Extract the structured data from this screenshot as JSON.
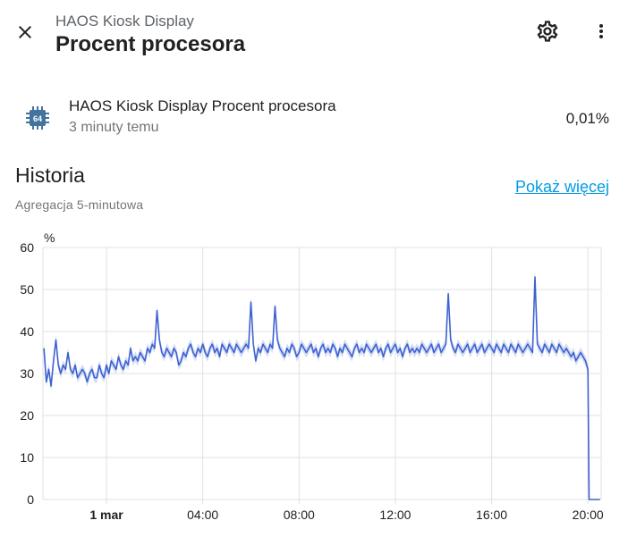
{
  "header": {
    "subtitle": "HAOS Kiosk Display",
    "title": "Procent procesora",
    "close_icon": "close-icon",
    "settings_icon": "gear-icon",
    "more_icon": "more-vertical-icon"
  },
  "entity": {
    "icon": "cpu-64-icon",
    "icon_text": "64",
    "name": "HAOS Kiosk Display Procent procesora",
    "last_changed": "3 minuty temu",
    "value": "0,01%"
  },
  "history": {
    "title": "Historia",
    "aggregation": "Agregacja 5-minutowa",
    "show_more": "Pokaż więcej"
  },
  "colors": {
    "accent": "#039be5",
    "line": "#3d62d1",
    "band": "#c9d5f2",
    "grid": "#e0e0e0"
  },
  "chart_data": {
    "type": "line",
    "unit_label": "%",
    "ylim": [
      0,
      60
    ],
    "yticks": [
      "0",
      "10",
      "20",
      "30",
      "40",
      "50",
      "60"
    ],
    "xticks": [
      {
        "label": "1 mar",
        "hour": 0,
        "bold": true
      },
      {
        "label": "04:00",
        "hour": 4,
        "bold": false
      },
      {
        "label": "08:00",
        "hour": 8,
        "bold": false
      },
      {
        "label": "12:00",
        "hour": 12,
        "bold": false
      },
      {
        "label": "16:00",
        "hour": 16,
        "bold": false
      },
      {
        "label": "20:00",
        "hour": 20,
        "bold": false
      }
    ],
    "xlim_hours": [
      -2.64,
      20.55
    ],
    "series": [
      {
        "points": [
          [
            -2.6,
            36
          ],
          [
            -2.5,
            28
          ],
          [
            -2.4,
            31
          ],
          [
            -2.3,
            27
          ],
          [
            -2.2,
            33
          ],
          [
            -2.1,
            38
          ],
          [
            -2.0,
            32
          ],
          [
            -1.9,
            30
          ],
          [
            -1.8,
            32
          ],
          [
            -1.7,
            31
          ],
          [
            -1.6,
            35
          ],
          [
            -1.5,
            31
          ],
          [
            -1.4,
            30
          ],
          [
            -1.3,
            32
          ],
          [
            -1.2,
            29
          ],
          [
            -1.1,
            30
          ],
          [
            -1.0,
            31
          ],
          [
            -0.9,
            30
          ],
          [
            -0.8,
            28
          ],
          [
            -0.7,
            30
          ],
          [
            -0.6,
            31
          ],
          [
            -0.5,
            29
          ],
          [
            -0.4,
            29
          ],
          [
            -0.3,
            32
          ],
          [
            -0.2,
            30
          ],
          [
            -0.1,
            29
          ],
          [
            0.0,
            32
          ],
          [
            0.1,
            30
          ],
          [
            0.2,
            33
          ],
          [
            0.3,
            32
          ],
          [
            0.4,
            31
          ],
          [
            0.5,
            34
          ],
          [
            0.6,
            32
          ],
          [
            0.7,
            31
          ],
          [
            0.8,
            33
          ],
          [
            0.9,
            32
          ],
          [
            1.0,
            36
          ],
          [
            1.1,
            33
          ],
          [
            1.2,
            34
          ],
          [
            1.3,
            33
          ],
          [
            1.4,
            35
          ],
          [
            1.5,
            34
          ],
          [
            1.6,
            33
          ],
          [
            1.7,
            36
          ],
          [
            1.8,
            35
          ],
          [
            1.9,
            37
          ],
          [
            2.0,
            36
          ],
          [
            2.1,
            45
          ],
          [
            2.2,
            38
          ],
          [
            2.3,
            35
          ],
          [
            2.4,
            34
          ],
          [
            2.5,
            36
          ],
          [
            2.6,
            35
          ],
          [
            2.7,
            34
          ],
          [
            2.8,
            36
          ],
          [
            2.9,
            35
          ],
          [
            3.0,
            32
          ],
          [
            3.1,
            33
          ],
          [
            3.2,
            35
          ],
          [
            3.3,
            34
          ],
          [
            3.4,
            36
          ],
          [
            3.5,
            37
          ],
          [
            3.6,
            35
          ],
          [
            3.7,
            34
          ],
          [
            3.8,
            36
          ],
          [
            3.9,
            35
          ],
          [
            4.0,
            37
          ],
          [
            4.1,
            35
          ],
          [
            4.2,
            34
          ],
          [
            4.3,
            36
          ],
          [
            4.4,
            37
          ],
          [
            4.5,
            35
          ],
          [
            4.6,
            36
          ],
          [
            4.7,
            34
          ],
          [
            4.8,
            37
          ],
          [
            4.9,
            36
          ],
          [
            5.0,
            35
          ],
          [
            5.1,
            37
          ],
          [
            5.2,
            36
          ],
          [
            5.3,
            35
          ],
          [
            5.4,
            37
          ],
          [
            5.5,
            36
          ],
          [
            5.6,
            35
          ],
          [
            5.7,
            36
          ],
          [
            5.8,
            37
          ],
          [
            5.9,
            36
          ],
          [
            6.0,
            47
          ],
          [
            6.1,
            37
          ],
          [
            6.2,
            33
          ],
          [
            6.3,
            36
          ],
          [
            6.4,
            35
          ],
          [
            6.5,
            37
          ],
          [
            6.6,
            36
          ],
          [
            6.7,
            35
          ],
          [
            6.8,
            37
          ],
          [
            6.9,
            36
          ],
          [
            7.0,
            46
          ],
          [
            7.1,
            38
          ],
          [
            7.2,
            36
          ],
          [
            7.3,
            35
          ],
          [
            7.4,
            34
          ],
          [
            7.5,
            36
          ],
          [
            7.6,
            35
          ],
          [
            7.7,
            37
          ],
          [
            7.8,
            36
          ],
          [
            7.9,
            34
          ],
          [
            8.0,
            35
          ],
          [
            8.1,
            37
          ],
          [
            8.2,
            36
          ],
          [
            8.3,
            35
          ],
          [
            8.4,
            36
          ],
          [
            8.5,
            37
          ],
          [
            8.6,
            35
          ],
          [
            8.7,
            36
          ],
          [
            8.8,
            34
          ],
          [
            8.9,
            36
          ],
          [
            9.0,
            37
          ],
          [
            9.1,
            35
          ],
          [
            9.2,
            36
          ],
          [
            9.3,
            35
          ],
          [
            9.4,
            37
          ],
          [
            9.5,
            36
          ],
          [
            9.6,
            34
          ],
          [
            9.7,
            36
          ],
          [
            9.8,
            35
          ],
          [
            9.9,
            37
          ],
          [
            10.0,
            36
          ],
          [
            10.1,
            35
          ],
          [
            10.2,
            34
          ],
          [
            10.3,
            36
          ],
          [
            10.4,
            37
          ],
          [
            10.5,
            35
          ],
          [
            10.6,
            36
          ],
          [
            10.7,
            35
          ],
          [
            10.8,
            37
          ],
          [
            10.9,
            36
          ],
          [
            11.0,
            35
          ],
          [
            11.1,
            36
          ],
          [
            11.2,
            37
          ],
          [
            11.3,
            35
          ],
          [
            11.4,
            36
          ],
          [
            11.5,
            34
          ],
          [
            11.6,
            36
          ],
          [
            11.7,
            37
          ],
          [
            11.8,
            35
          ],
          [
            11.9,
            36
          ],
          [
            12.0,
            37
          ],
          [
            12.1,
            35
          ],
          [
            12.2,
            36
          ],
          [
            12.3,
            34
          ],
          [
            12.4,
            36
          ],
          [
            12.5,
            37
          ],
          [
            12.6,
            35
          ],
          [
            12.7,
            36
          ],
          [
            12.8,
            35
          ],
          [
            12.9,
            36
          ],
          [
            13.0,
            35
          ],
          [
            13.1,
            37
          ],
          [
            13.2,
            36
          ],
          [
            13.3,
            35
          ],
          [
            13.4,
            36
          ],
          [
            13.5,
            37
          ],
          [
            13.6,
            35
          ],
          [
            13.7,
            36
          ],
          [
            13.8,
            37
          ],
          [
            13.9,
            35
          ],
          [
            14.0,
            36
          ],
          [
            14.1,
            37
          ],
          [
            14.2,
            49
          ],
          [
            14.3,
            38
          ],
          [
            14.4,
            36
          ],
          [
            14.5,
            35
          ],
          [
            14.6,
            37
          ],
          [
            14.7,
            36
          ],
          [
            14.8,
            35
          ],
          [
            14.9,
            36
          ],
          [
            15.0,
            37
          ],
          [
            15.1,
            35
          ],
          [
            15.2,
            36
          ],
          [
            15.3,
            37
          ],
          [
            15.4,
            35
          ],
          [
            15.5,
            36
          ],
          [
            15.6,
            37
          ],
          [
            15.7,
            35
          ],
          [
            15.8,
            36
          ],
          [
            15.9,
            37
          ],
          [
            16.0,
            36
          ],
          [
            16.1,
            35
          ],
          [
            16.2,
            37
          ],
          [
            16.3,
            36
          ],
          [
            16.4,
            35
          ],
          [
            16.5,
            37
          ],
          [
            16.6,
            36
          ],
          [
            16.7,
            35
          ],
          [
            16.8,
            37
          ],
          [
            16.9,
            36
          ],
          [
            17.0,
            35
          ],
          [
            17.1,
            37
          ],
          [
            17.2,
            36
          ],
          [
            17.3,
            35
          ],
          [
            17.4,
            36
          ],
          [
            17.5,
            37
          ],
          [
            17.6,
            36
          ],
          [
            17.7,
            35
          ],
          [
            17.8,
            53
          ],
          [
            17.9,
            37
          ],
          [
            18.0,
            36
          ],
          [
            18.1,
            35
          ],
          [
            18.2,
            37
          ],
          [
            18.3,
            36
          ],
          [
            18.4,
            35
          ],
          [
            18.5,
            37
          ],
          [
            18.6,
            36
          ],
          [
            18.7,
            35
          ],
          [
            18.8,
            37
          ],
          [
            18.9,
            36
          ],
          [
            19.0,
            35
          ],
          [
            19.1,
            36
          ],
          [
            19.2,
            35
          ],
          [
            19.3,
            34
          ],
          [
            19.4,
            35
          ],
          [
            19.5,
            33
          ],
          [
            19.6,
            34
          ],
          [
            19.7,
            35
          ],
          [
            19.8,
            34
          ],
          [
            19.9,
            33
          ],
          [
            20.0,
            31
          ],
          [
            20.05,
            0
          ],
          [
            20.1,
            0
          ],
          [
            20.3,
            0
          ],
          [
            20.5,
            0
          ]
        ]
      }
    ]
  }
}
